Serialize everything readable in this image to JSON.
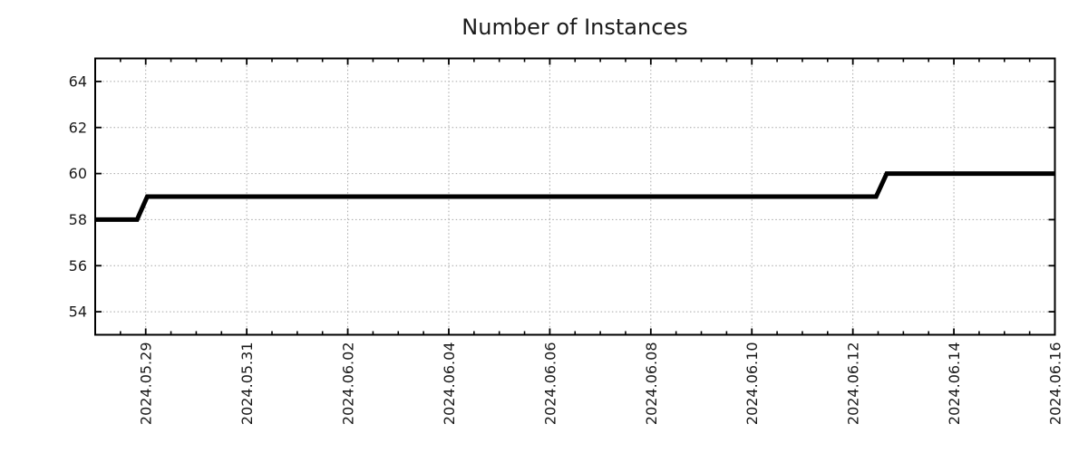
{
  "chart_data": {
    "type": "line",
    "title": "Number of Instances",
    "legend": "none",
    "grid": "dotted lines at major x and y ticks",
    "colors": {
      "line": "#000000",
      "grid": "#a6a6a6",
      "axis": "#000000",
      "text": "#1a1a1a"
    },
    "x_axis": {
      "kind": "date",
      "start_date": "2024-05-28",
      "range_days": [
        0,
        19
      ],
      "major_tick_interval_days": 2,
      "minor_tick_interval_days": 0.5,
      "label_rotation_deg": 90,
      "major_ticks": [
        {
          "day": 1,
          "label": "2024.05.29"
        },
        {
          "day": 3,
          "label": "2024.05.31"
        },
        {
          "day": 5,
          "label": "2024.06.02"
        },
        {
          "day": 7,
          "label": "2024.06.04"
        },
        {
          "day": 9,
          "label": "2024.06.06"
        },
        {
          "day": 11,
          "label": "2024.06.08"
        },
        {
          "day": 13,
          "label": "2024.06.10"
        },
        {
          "day": 15,
          "label": "2024.06.12"
        },
        {
          "day": 17,
          "label": "2024.06.14"
        },
        {
          "day": 19,
          "label": "2024.06.16"
        }
      ]
    },
    "y_axis": {
      "range": [
        53,
        65
      ],
      "major_ticks": [
        54,
        56,
        58,
        60,
        62,
        64
      ],
      "minor_ticks": "none"
    },
    "series": [
      {
        "name": "instances",
        "color": "#000000",
        "points": [
          {
            "date": "2024-05-28 00:00",
            "day": 0.0,
            "value": 58
          },
          {
            "date": "2024-05-28 20:00",
            "day": 0.83,
            "value": 58
          },
          {
            "date": "2024-05-29 01:00",
            "day": 1.03,
            "value": 59
          },
          {
            "date": "2024-06-12 11:00",
            "day": 15.46,
            "value": 59
          },
          {
            "date": "2024-06-12 16:00",
            "day": 15.67,
            "value": 60
          },
          {
            "date": "2024-06-16 00:00",
            "day": 19.0,
            "value": 60
          }
        ]
      }
    ]
  }
}
